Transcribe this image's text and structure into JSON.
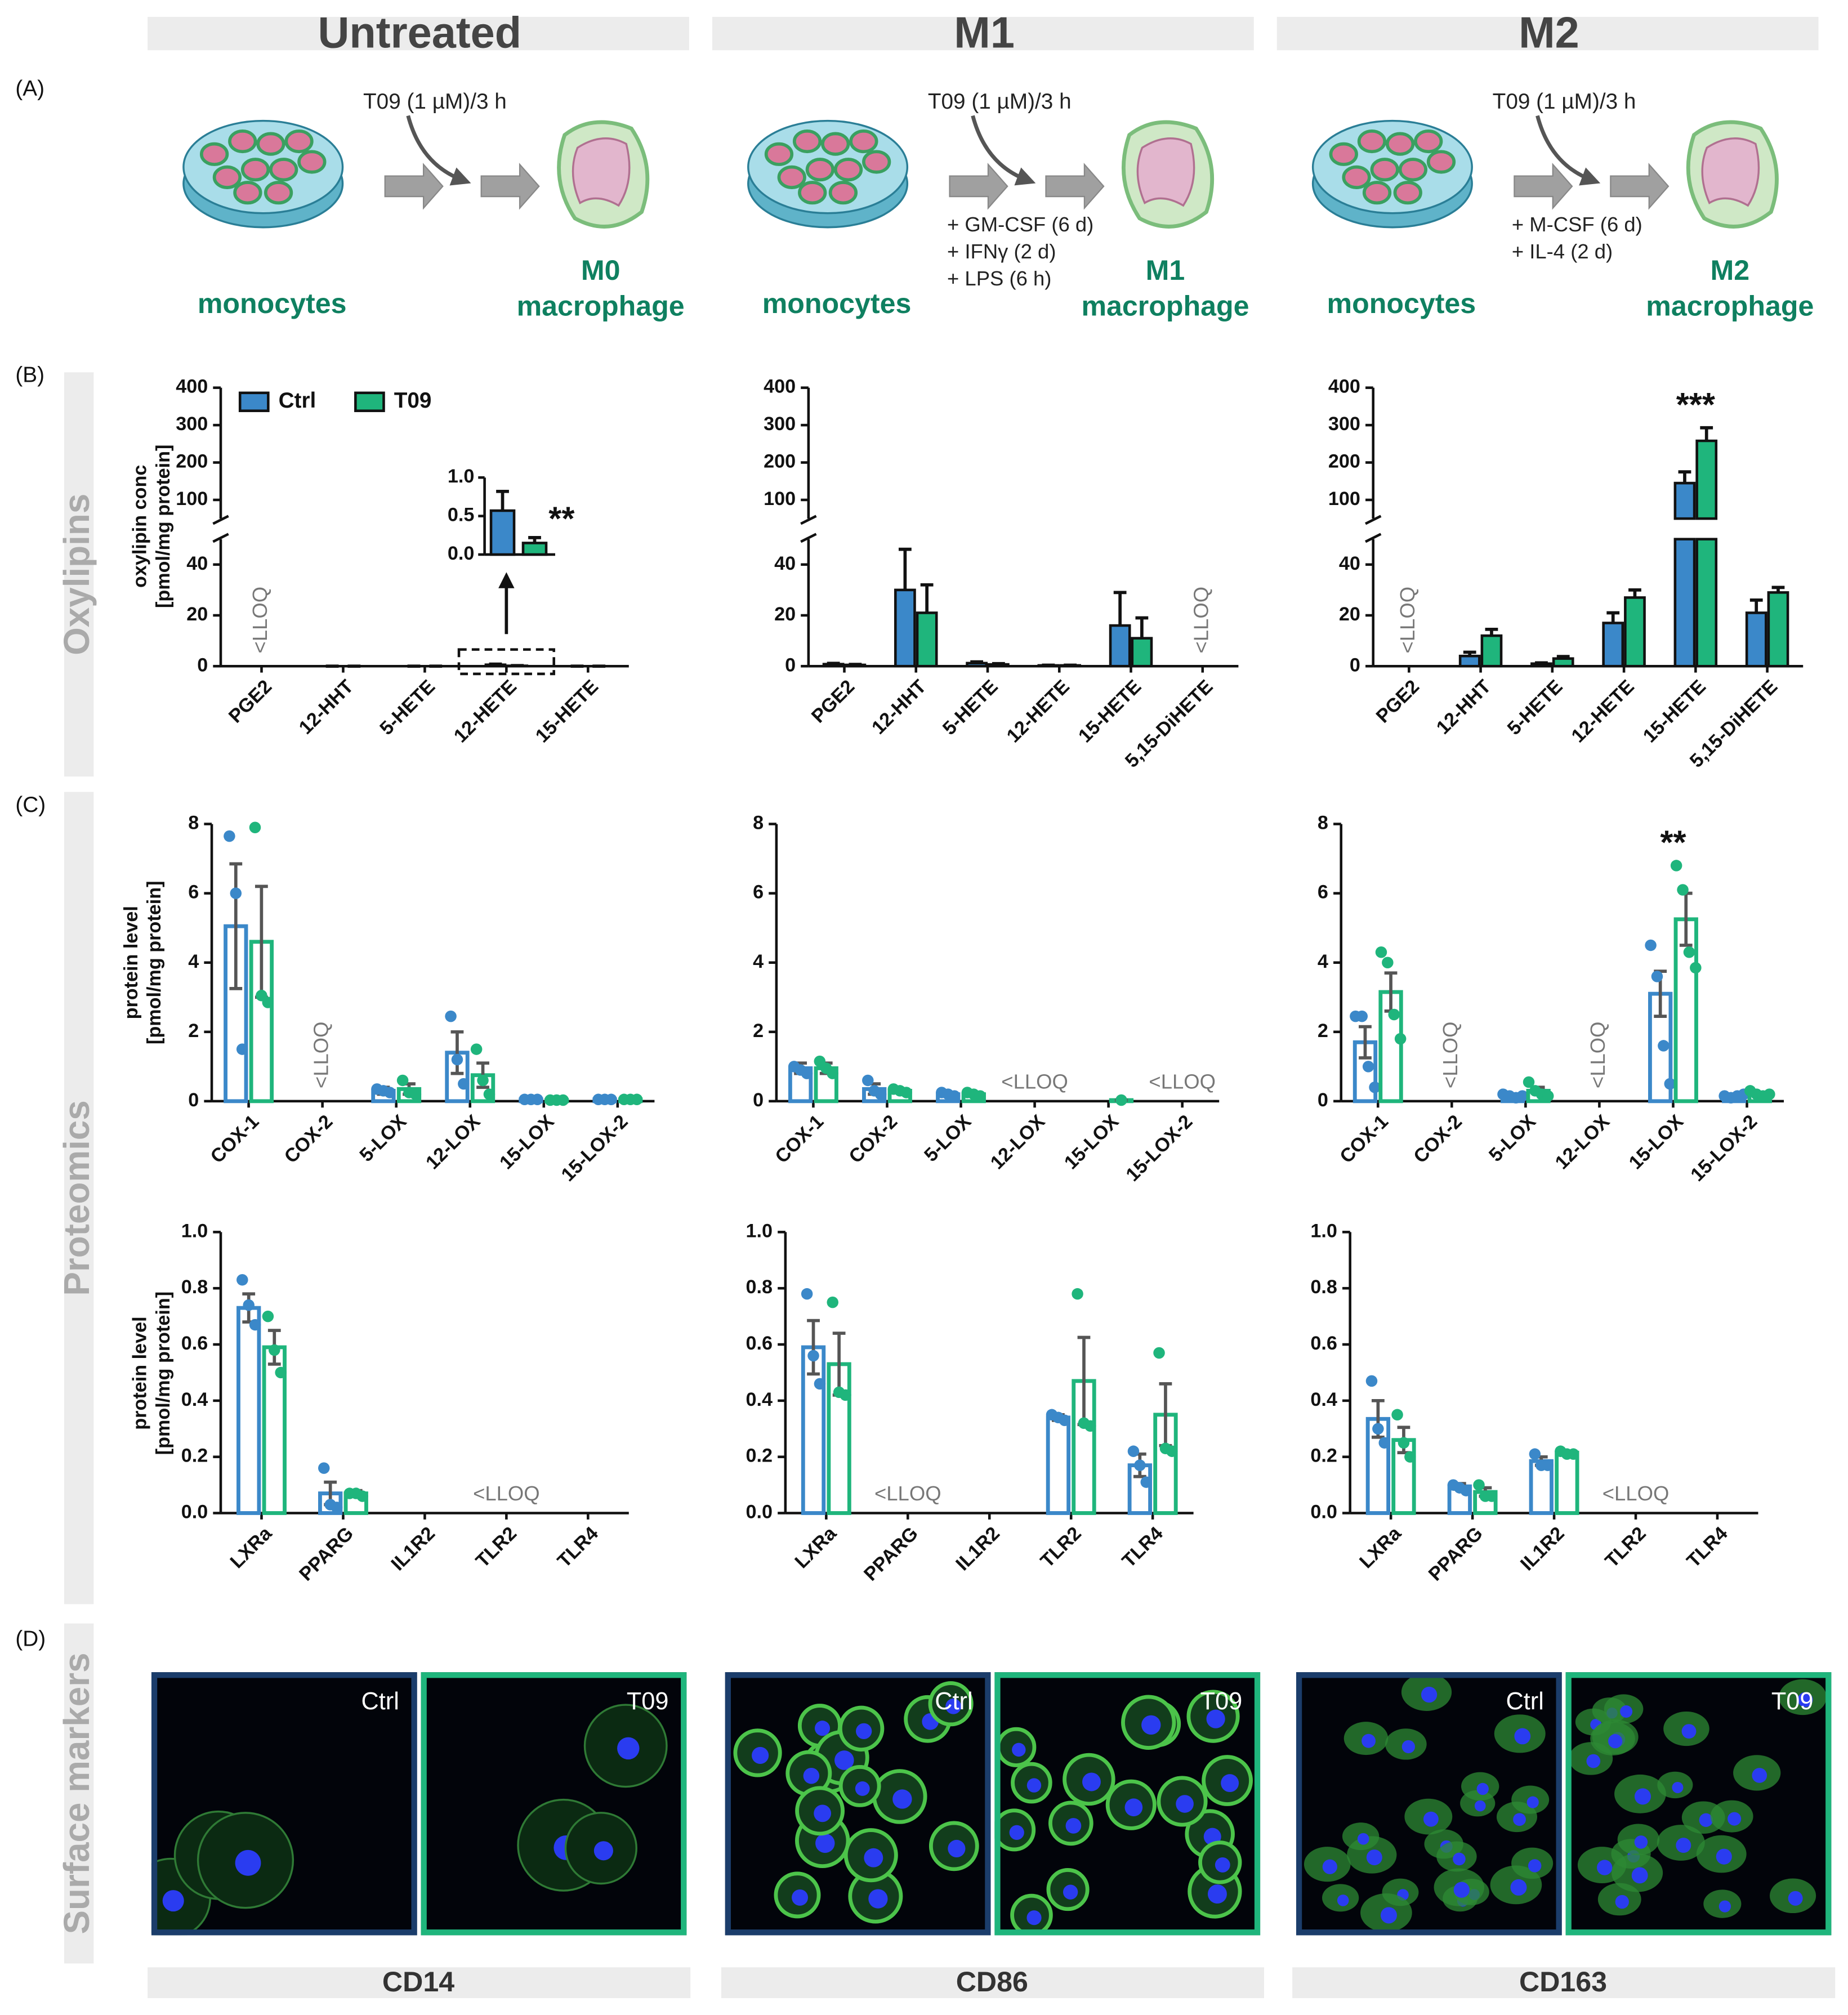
{
  "columns": [
    "Untreated",
    "M1",
    "M2"
  ],
  "panels": [
    "(A)",
    "(B)",
    "(C)",
    "(D)"
  ],
  "rows": [
    "Oxylipins",
    "Proteomics",
    "Surface markers"
  ],
  "schemes": [
    {
      "treatment": "T09 (1 µM)/3 h",
      "start": "monocytes",
      "end": [
        "M0",
        "macrophage"
      ],
      "additions": []
    },
    {
      "treatment": "T09 (1 µM)/3 h",
      "start": "monocytes",
      "end": [
        "M1",
        "macrophage"
      ],
      "additions": [
        "+ GM-CSF (6 d)",
        "+ IFNγ (2 d)",
        "+ LPS (6 h)"
      ]
    },
    {
      "treatment": "T09 (1 µM)/3 h",
      "start": "monocytes",
      "end": [
        "M2",
        "macrophage"
      ],
      "additions": [
        "+ M-CSF (6 d)",
        "+ IL-4 (2 d)"
      ]
    }
  ],
  "chart_data": [
    {
      "type": "bar",
      "style": "filled",
      "categories": [
        "PGE2",
        "12-HHT",
        "5-HETE",
        "12-HETE",
        "15-HETE"
      ],
      "ylabel": [
        "oxylipin conc",
        "[pmol/mg protein]"
      ],
      "ylim": [
        0,
        400
      ],
      "ybreak": 50,
      "yticks": [
        0,
        20,
        40,
        100,
        200,
        300,
        400
      ],
      "legend": "top-left",
      "series": [
        {
          "name": "Ctrl",
          "color": "#3b88c9",
          "values": [
            null,
            0,
            0,
            0.57,
            0
          ],
          "errors": [
            null,
            0,
            0,
            0.25,
            0
          ]
        },
        {
          "name": "T09",
          "color": "#1fb57c",
          "values": [
            null,
            0,
            0,
            0.15,
            0
          ],
          "errors": [
            null,
            0,
            0,
            0.07,
            0
          ]
        }
      ],
      "annotations": [
        {
          "text": "<LLOQ",
          "category": 0,
          "vertical": true
        }
      ],
      "inset": {
        "category": 3,
        "ylim": [
          0,
          1
        ],
        "yticks": [
          {
            "value": 0,
            "label": "0.0"
          },
          0.5,
          {
            "value": 1,
            "label": "1.0"
          }
        ],
        "annotation": "**"
      }
    },
    {
      "type": "bar",
      "style": "filled",
      "categories": [
        "PGE2",
        "12-HHT",
        "5-HETE",
        "12-HETE",
        "15-HETE",
        "5,15-DiHETE"
      ],
      "ylim": [
        0,
        400
      ],
      "ybreak": 50,
      "yticks": [
        0,
        20,
        40,
        100,
        200,
        300,
        400
      ],
      "series": [
        {
          "color": "#3b88c9",
          "values": [
            0.8,
            30,
            1.2,
            0.3,
            16,
            null
          ],
          "errors": [
            0.3,
            16,
            0.5,
            0.1,
            13,
            null
          ]
        },
        {
          "color": "#1fb57c",
          "values": [
            0.5,
            21,
            0.7,
            0.3,
            11,
            null
          ],
          "errors": [
            0.2,
            11,
            0.3,
            0.1,
            8,
            null
          ]
        }
      ],
      "annotations": [
        {
          "text": "<LLOQ",
          "category": 5,
          "vertical": true
        }
      ]
    },
    {
      "type": "bar",
      "style": "filled",
      "categories": [
        "PGE2",
        "12-HHT",
        "5-HETE",
        "12-HETE",
        "15-HETE",
        "5,15-DiHETE"
      ],
      "ylim": [
        0,
        400
      ],
      "ybreak": 50,
      "yticks": [
        0,
        20,
        40,
        100,
        200,
        300,
        400
      ],
      "series": [
        {
          "color": "#3b88c9",
          "values": [
            null,
            4,
            1,
            17,
            145,
            21
          ],
          "errors": [
            null,
            1.5,
            0.3,
            4,
            30,
            5
          ]
        },
        {
          "color": "#1fb57c",
          "values": [
            null,
            12,
            3,
            27,
            258,
            29
          ],
          "errors": [
            null,
            2.5,
            0.8,
            3,
            35,
            2
          ]
        }
      ],
      "annotations": [
        {
          "text": "<LLOQ",
          "category": 0,
          "vertical": true
        },
        {
          "text": "***",
          "category": 4
        }
      ]
    },
    {
      "type": "bar",
      "style": "open",
      "categories": [
        "COX-1",
        "COX-2",
        "5-LOX",
        "12-LOX",
        "15-LOX",
        "15-LOX-2"
      ],
      "ylabel": [
        "protein level",
        "[pmol/mg protein]"
      ],
      "ylim": [
        0,
        8
      ],
      "yticks": [
        0,
        2,
        4,
        6,
        8
      ],
      "series": [
        {
          "color": "#3b88c9",
          "values": [
            5.05,
            null,
            0.3,
            1.4,
            0.05,
            0.05
          ],
          "errors": [
            1.8,
            null,
            0.1,
            0.6,
            0.02,
            0.02
          ],
          "points": [
            [
              7.65,
              6.0,
              1.5
            ],
            null,
            [
              0.35,
              0.3,
              0.25
            ],
            [
              2.45,
              1.2,
              0.5
            ],
            [
              0.05,
              0.05,
              0.05
            ],
            [
              0.05,
              0.05,
              0.05
            ]
          ]
        },
        {
          "color": "#1fb57c",
          "values": [
            4.6,
            null,
            0.35,
            0.75,
            0.03,
            0.05
          ],
          "errors": [
            1.6,
            null,
            0.15,
            0.35,
            0.01,
            0.02
          ],
          "points": [
            [
              7.9,
              3.05,
              2.85
            ],
            null,
            [
              0.6,
              0.25,
              0.2
            ],
            [
              1.5,
              0.6,
              0.2
            ],
            [
              0.03,
              0.03,
              0.03
            ],
            [
              0.05,
              0.05,
              0.05
            ]
          ]
        }
      ],
      "annotations": [
        {
          "text": "<LLOQ",
          "category": 1,
          "vertical": true
        }
      ]
    },
    {
      "type": "bar",
      "style": "open",
      "categories": [
        "COX-1",
        "COX-2",
        "5-LOX",
        "12-LOX",
        "15-LOX",
        "15-LOX-2"
      ],
      "ylim": [
        0,
        8
      ],
      "yticks": [
        0,
        2,
        4,
        6,
        8
      ],
      "series": [
        {
          "color": "#3b88c9",
          "values": [
            0.95,
            0.35,
            0.2,
            null,
            null,
            null
          ],
          "errors": [
            0.15,
            0.15,
            0.05,
            null,
            null,
            null
          ],
          "points": [
            [
              1.0,
              0.9,
              0.8
            ],
            [
              0.6,
              0.3,
              0.2
            ],
            [
              0.25,
              0.2,
              0.15
            ],
            null,
            null,
            null
          ]
        },
        {
          "color": "#1fb57c",
          "values": [
            0.95,
            0.3,
            0.2,
            null,
            0.03,
            null
          ],
          "errors": [
            0.15,
            0.05,
            0.05,
            null,
            0,
            null
          ],
          "points": [
            [
              1.15,
              0.95,
              0.8
            ],
            [
              0.35,
              0.3,
              0.25
            ],
            [
              0.25,
              0.2,
              0.15
            ],
            null,
            [
              0.03
            ],
            null
          ]
        }
      ],
      "annotations": [
        {
          "text": "<LLOQ",
          "category": 3
        },
        {
          "text": "<LLOQ",
          "category": 5
        }
      ]
    },
    {
      "type": "bar",
      "style": "open",
      "categories": [
        "COX-1",
        "COX-2",
        "5-LOX",
        "12-LOX",
        "15-LOX",
        "15-LOX-2"
      ],
      "ylim": [
        0,
        8
      ],
      "yticks": [
        0,
        2,
        4,
        6,
        8
      ],
      "series": [
        {
          "color": "#3b88c9",
          "values": [
            1.7,
            null,
            0.15,
            null,
            3.1,
            0.15
          ],
          "errors": [
            0.45,
            null,
            0.05,
            null,
            0.65,
            0.03
          ],
          "points": [
            [
              2.45,
              2.45,
              1.0,
              0.4
            ],
            null,
            [
              0.2,
              0.15,
              0.1,
              0.15
            ],
            null,
            [
              4.5,
              3.6,
              1.6,
              0.5
            ],
            [
              0.15,
              0.1,
              0.15,
              0.2
            ]
          ]
        },
        {
          "color": "#1fb57c",
          "values": [
            3.15,
            null,
            0.3,
            null,
            5.25,
            0.2
          ],
          "errors": [
            0.55,
            null,
            0.1,
            null,
            0.75,
            0.05
          ],
          "points": [
            [
              4.3,
              4.0,
              2.5,
              1.8
            ],
            null,
            [
              0.55,
              0.3,
              0.2,
              0.15
            ],
            null,
            [
              6.8,
              6.1,
              4.3,
              3.85
            ],
            [
              0.3,
              0.2,
              0.15,
              0.2
            ]
          ]
        }
      ],
      "annotations": [
        {
          "text": "<LLOQ",
          "category": 1,
          "vertical": true
        },
        {
          "text": "<LLOQ",
          "category": 3,
          "vertical": true
        },
        {
          "text": "**",
          "category": 4
        }
      ]
    },
    {
      "type": "bar",
      "style": "open",
      "categories": [
        "LXRa",
        "PPARG",
        "IL1R2",
        "TLR2",
        "TLR4"
      ],
      "ylabel": [
        "protein level",
        "[pmol/mg protein]"
      ],
      "ylim": [
        0,
        1
      ],
      "yticks": [
        {
          "value": 0,
          "label": "0.0"
        },
        0.2,
        0.4,
        0.6,
        0.8,
        {
          "value": 1,
          "label": "1.0"
        }
      ],
      "series": [
        {
          "color": "#3b88c9",
          "values": [
            0.73,
            0.07,
            null,
            null,
            null
          ],
          "errors": [
            0.05,
            0.04,
            null,
            null,
            null
          ],
          "points": [
            [
              0.83,
              0.74,
              0.67
            ],
            [
              0.16,
              0.03,
              0.02
            ],
            null,
            null,
            null
          ]
        },
        {
          "color": "#1fb57c",
          "values": [
            0.59,
            0.07,
            null,
            null,
            null
          ],
          "errors": [
            0.06,
            0.01,
            null,
            null,
            null
          ],
          "points": [
            [
              0.7,
              0.58,
              0.5
            ],
            [
              0.07,
              0.07,
              0.06
            ],
            null,
            null,
            null
          ]
        }
      ],
      "annotations": [
        {
          "text": "<LLOQ",
          "category": 3
        }
      ]
    },
    {
      "type": "bar",
      "style": "open",
      "categories": [
        "LXRa",
        "PPARG",
        "IL1R2",
        "TLR2",
        "TLR4"
      ],
      "ylim": [
        0,
        1
      ],
      "yticks": [
        {
          "value": 0,
          "label": "0.0"
        },
        0.2,
        0.4,
        0.6,
        0.8,
        {
          "value": 1,
          "label": "1.0"
        }
      ],
      "series": [
        {
          "color": "#3b88c9",
          "values": [
            0.59,
            null,
            null,
            0.34,
            0.17
          ],
          "errors": [
            0.095,
            null,
            null,
            0.01,
            0.04
          ],
          "points": [
            [
              0.78,
              0.56,
              0.46
            ],
            null,
            null,
            [
              0.35,
              0.34,
              0.33
            ],
            [
              0.22,
              0.17,
              0.11
            ]
          ]
        },
        {
          "color": "#1fb57c",
          "values": [
            0.53,
            null,
            null,
            0.47,
            0.35
          ],
          "errors": [
            0.11,
            null,
            null,
            0.155,
            0.11
          ],
          "points": [
            [
              0.75,
              0.43,
              0.42
            ],
            null,
            null,
            [
              0.78,
              0.32,
              0.31
            ],
            [
              0.57,
              0.23,
              0.22
            ]
          ]
        }
      ],
      "annotations": [
        {
          "text": "<LLOQ",
          "category": 1
        }
      ]
    },
    {
      "type": "bar",
      "style": "open",
      "categories": [
        "LXRa",
        "PPARG",
        "IL1R2",
        "TLR2",
        "TLR4"
      ],
      "ylim": [
        0,
        1
      ],
      "yticks": [
        {
          "value": 0,
          "label": "0.0"
        },
        0.2,
        0.4,
        0.6,
        0.8,
        {
          "value": 1,
          "label": "1.0"
        }
      ],
      "series": [
        {
          "color": "#3b88c9",
          "values": [
            0.335,
            0.095,
            0.185,
            null,
            null
          ],
          "errors": [
            0.065,
            0.01,
            0.015,
            null,
            null
          ],
          "points": [
            [
              0.47,
              0.3,
              0.25
            ],
            [
              0.1,
              0.09,
              0.08
            ],
            [
              0.21,
              0.17,
              0.17
            ],
            null,
            null
          ]
        },
        {
          "color": "#1fb57c",
          "values": [
            0.26,
            0.075,
            0.215,
            null,
            null
          ],
          "errors": [
            0.045,
            0.015,
            0.005,
            null,
            null
          ],
          "points": [
            [
              0.35,
              0.25,
              0.2
            ],
            [
              0.1,
              0.06,
              0.06
            ],
            [
              0.22,
              0.21,
              0.21
            ],
            null,
            null
          ]
        }
      ],
      "annotations": [
        {
          "text": "<LLOQ",
          "category": 3
        }
      ]
    }
  ],
  "surface_markers": [
    {
      "marker": "CD14",
      "images": [
        "Ctrl",
        "T09"
      ]
    },
    {
      "marker": "CD86",
      "images": [
        "Ctrl",
        "T09"
      ]
    },
    {
      "marker": "CD163",
      "images": [
        "Ctrl",
        "T09"
      ]
    }
  ]
}
